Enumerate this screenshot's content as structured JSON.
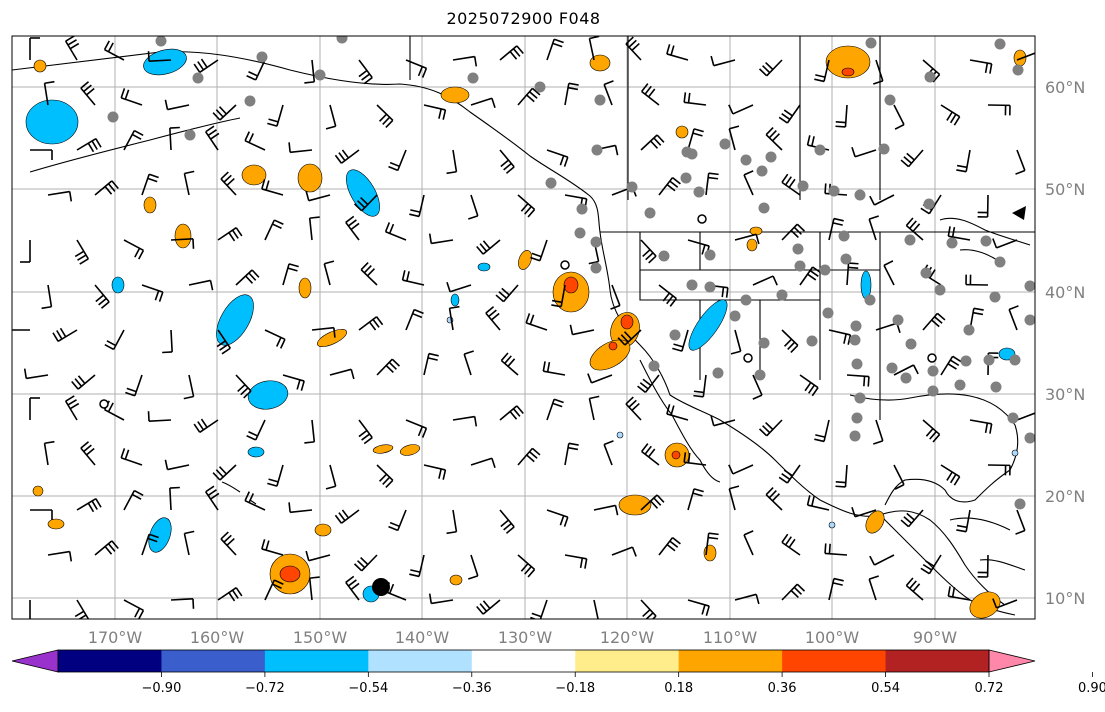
{
  "title": "2025072900 F048",
  "map": {
    "lon_labels": [
      "170°W",
      "160°W",
      "150°W",
      "140°W",
      "130°W",
      "120°W",
      "110°W",
      "100°W",
      "90°W"
    ],
    "lat_labels": [
      "60°N",
      "50°N",
      "40°N",
      "30°N",
      "20°N",
      "10°N"
    ],
    "gridlines": true,
    "fill_colors": {
      "negative_strong": "#00bfff",
      "negative_weak": "#add8ff",
      "positive_weak": "#ffa500",
      "positive_mid": "#ff4500",
      "positive_strong": "#b22222",
      "station_marker": "#808080"
    }
  },
  "colorbar": {
    "tick_labels": [
      "−0.90",
      "−0.72",
      "−0.54",
      "−0.36",
      "−0.18",
      "0.18",
      "0.36",
      "0.54",
      "0.72",
      "0.90"
    ],
    "segment_colors": [
      "#9932cc",
      "#000080",
      "#3a5fcd",
      "#00bfff",
      "#b0e2ff",
      "#ffffff",
      "#ffec8b",
      "#ffa500",
      "#ff4500",
      "#b22222",
      "#ff88aa"
    ]
  }
}
